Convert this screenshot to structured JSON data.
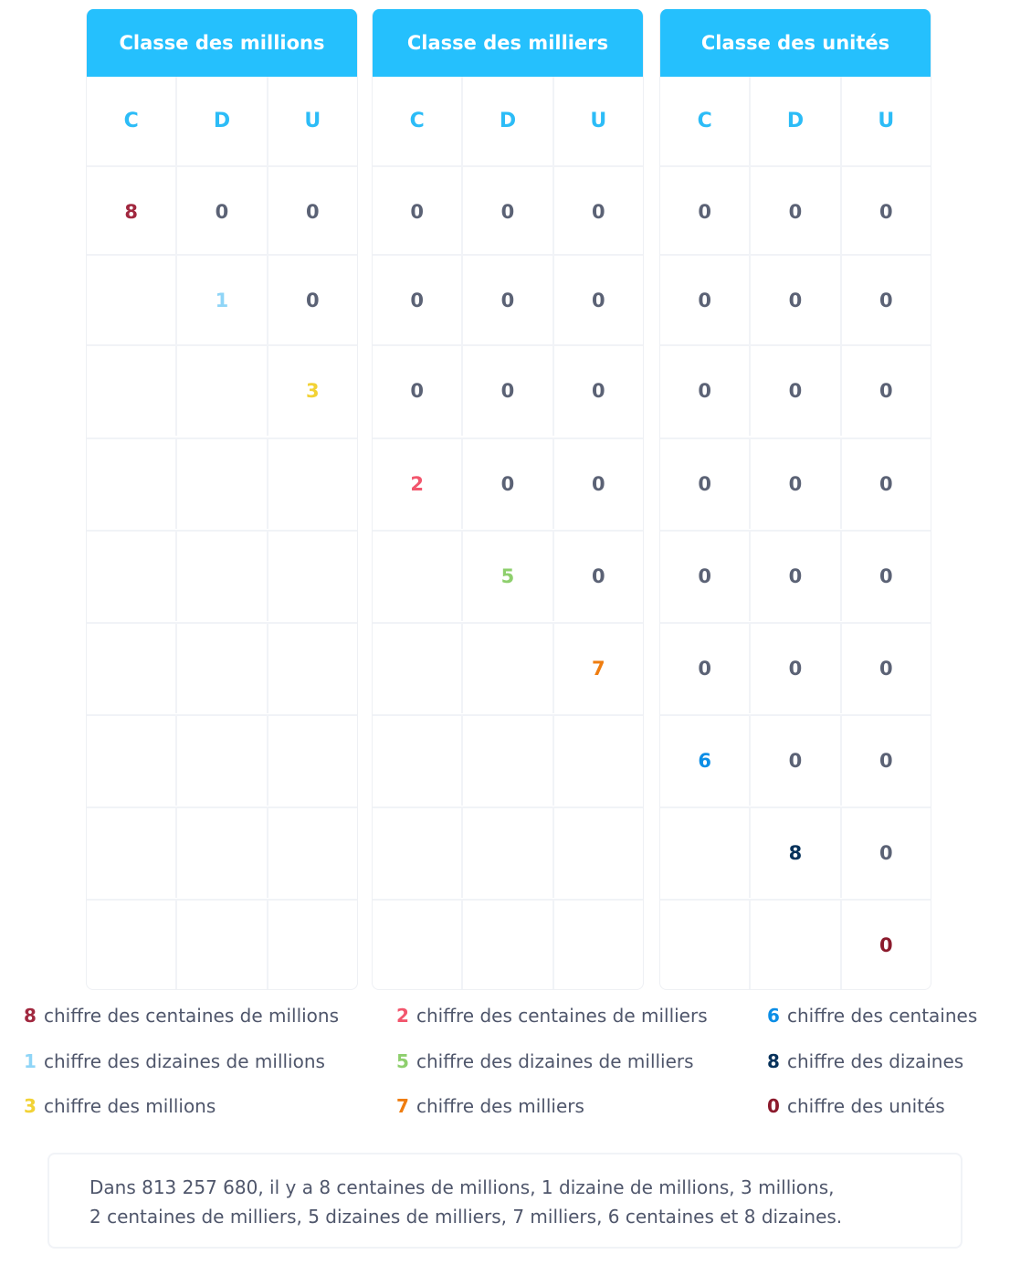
{
  "colors": {
    "header_bg": "#25c0fd",
    "col_header": "#2cbcf7",
    "zero": "#5b6275",
    "digit_8_hundred_millions": "#a1283f",
    "digit_1_ten_millions": "#8fd5f7",
    "digit_3_millions": "#f2d235",
    "digit_2_hundred_thousands": "#f2566d",
    "digit_5_ten_thousands": "#8ecf6d",
    "digit_7_thousands": "#ef7d10",
    "digit_6_hundreds": "#0c8ee6",
    "digit_8_tens": "#07325b",
    "digit_0_units": "#8b1a2c"
  },
  "tables": [
    {
      "title": "Classe des millions",
      "columns": [
        "C",
        "D",
        "U"
      ],
      "rows": [
        [
          {
            "v": "8",
            "c": "digit_8_hundred_millions"
          },
          {
            "v": "0"
          },
          {
            "v": "0"
          }
        ],
        [
          {
            "v": ""
          },
          {
            "v": "1",
            "c": "digit_1_ten_millions"
          },
          {
            "v": "0"
          }
        ],
        [
          {
            "v": ""
          },
          {
            "v": ""
          },
          {
            "v": "3",
            "c": "digit_3_millions"
          }
        ],
        [
          {
            "v": ""
          },
          {
            "v": ""
          },
          {
            "v": ""
          }
        ],
        [
          {
            "v": ""
          },
          {
            "v": ""
          },
          {
            "v": ""
          }
        ],
        [
          {
            "v": ""
          },
          {
            "v": ""
          },
          {
            "v": ""
          }
        ],
        [
          {
            "v": ""
          },
          {
            "v": ""
          },
          {
            "v": ""
          }
        ],
        [
          {
            "v": ""
          },
          {
            "v": ""
          },
          {
            "v": ""
          }
        ],
        [
          {
            "v": ""
          },
          {
            "v": ""
          },
          {
            "v": ""
          }
        ]
      ]
    },
    {
      "title": "Classe des milliers",
      "columns": [
        "C",
        "D",
        "U"
      ],
      "rows": [
        [
          {
            "v": "0"
          },
          {
            "v": "0"
          },
          {
            "v": "0"
          }
        ],
        [
          {
            "v": "0"
          },
          {
            "v": "0"
          },
          {
            "v": "0"
          }
        ],
        [
          {
            "v": "0"
          },
          {
            "v": "0"
          },
          {
            "v": "0"
          }
        ],
        [
          {
            "v": "2",
            "c": "digit_2_hundred_thousands"
          },
          {
            "v": "0"
          },
          {
            "v": "0"
          }
        ],
        [
          {
            "v": ""
          },
          {
            "v": "5",
            "c": "digit_5_ten_thousands"
          },
          {
            "v": "0"
          }
        ],
        [
          {
            "v": ""
          },
          {
            "v": ""
          },
          {
            "v": "7",
            "c": "digit_7_thousands"
          }
        ],
        [
          {
            "v": ""
          },
          {
            "v": ""
          },
          {
            "v": ""
          }
        ],
        [
          {
            "v": ""
          },
          {
            "v": ""
          },
          {
            "v": ""
          }
        ],
        [
          {
            "v": ""
          },
          {
            "v": ""
          },
          {
            "v": ""
          }
        ]
      ]
    },
    {
      "title": "Classe des unités",
      "columns": [
        "C",
        "D",
        "U"
      ],
      "rows": [
        [
          {
            "v": "0"
          },
          {
            "v": "0"
          },
          {
            "v": "0"
          }
        ],
        [
          {
            "v": "0"
          },
          {
            "v": "0"
          },
          {
            "v": "0"
          }
        ],
        [
          {
            "v": "0"
          },
          {
            "v": "0"
          },
          {
            "v": "0"
          }
        ],
        [
          {
            "v": "0"
          },
          {
            "v": "0"
          },
          {
            "v": "0"
          }
        ],
        [
          {
            "v": "0"
          },
          {
            "v": "0"
          },
          {
            "v": "0"
          }
        ],
        [
          {
            "v": "0"
          },
          {
            "v": "0"
          },
          {
            "v": "0"
          }
        ],
        [
          {
            "v": "6",
            "c": "digit_6_hundreds"
          },
          {
            "v": "0"
          },
          {
            "v": "0"
          }
        ],
        [
          {
            "v": ""
          },
          {
            "v": "8",
            "c": "digit_8_tens"
          },
          {
            "v": "0"
          }
        ],
        [
          {
            "v": ""
          },
          {
            "v": ""
          },
          {
            "v": "0",
            "c": "digit_0_units"
          }
        ]
      ]
    }
  ],
  "legend": [
    [
      {
        "digit": "8",
        "c": "digit_8_hundred_millions",
        "label": "chiffre des centaines de millions"
      },
      {
        "digit": "1",
        "c": "digit_1_ten_millions",
        "label": "chiffre des dizaines de millions"
      },
      {
        "digit": "3",
        "c": "digit_3_millions",
        "label": "chiffre des millions"
      }
    ],
    [
      {
        "digit": "2",
        "c": "digit_2_hundred_thousands",
        "label": "chiffre des centaines de milliers"
      },
      {
        "digit": "5",
        "c": "digit_5_ten_thousands",
        "label": "chiffre des dizaines de milliers"
      },
      {
        "digit": "7",
        "c": "digit_7_thousands",
        "label": "chiffre des milliers"
      }
    ],
    [
      {
        "digit": "6",
        "c": "digit_6_hundreds",
        "label": "chiffre des centaines"
      },
      {
        "digit": "8",
        "c": "digit_8_tens",
        "label": "chiffre des dizaines"
      },
      {
        "digit": "0",
        "c": "digit_0_units",
        "label": "chiffre des unités"
      }
    ]
  ],
  "summary": {
    "line1": "Dans 813 257 680, il y a 8 centaines de millions, 1 dizaine de millions, 3 millions,",
    "line2": "2 centaines de milliers, 5 dizaines de milliers, 7 milliers, 6 centaines et 8 dizaines."
  }
}
